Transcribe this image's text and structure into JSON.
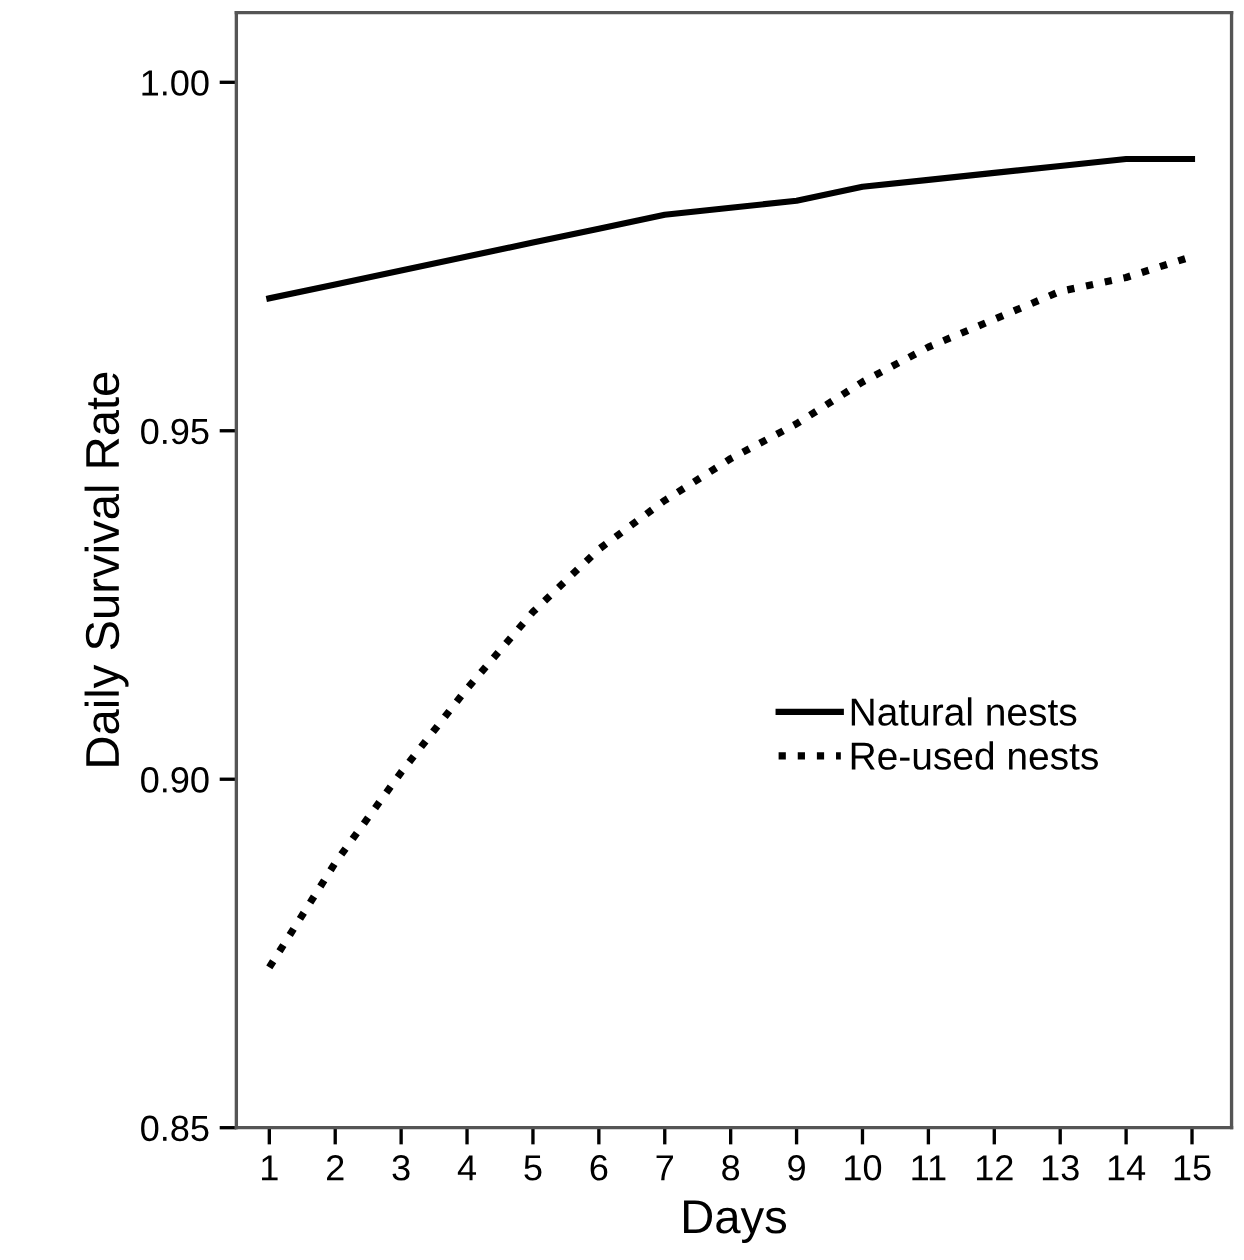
{
  "chart_data": {
    "type": "line",
    "xlabel": "Days",
    "ylabel": "Daily Survival Rate",
    "x": [
      1,
      2,
      3,
      4,
      5,
      6,
      7,
      8,
      9,
      10,
      11,
      12,
      13,
      14,
      15
    ],
    "series": [
      {
        "name": "Natural nests",
        "color": "#000000",
        "line_style": "solid",
        "values": [
          0.969,
          0.971,
          0.973,
          0.975,
          0.977,
          0.979,
          0.981,
          0.982,
          0.983,
          0.985,
          0.986,
          0.987,
          0.988,
          0.989,
          0.989
        ]
      },
      {
        "name": "Re-used nests",
        "color": "#000000",
        "line_style": "dotted",
        "values": [
          0.873,
          0.888,
          0.901,
          0.913,
          0.924,
          0.933,
          0.94,
          0.946,
          0.951,
          0.957,
          0.962,
          0.966,
          0.97,
          0.972,
          0.975
        ]
      }
    ],
    "xlim": [
      0.5,
      15.6
    ],
    "ylim": [
      0.85,
      1.01
    ],
    "xticks": [
      1,
      2,
      3,
      4,
      5,
      6,
      7,
      8,
      9,
      10,
      11,
      12,
      13,
      14,
      15
    ],
    "yticks": [
      {
        "value": 0.85,
        "label": "0.85"
      },
      {
        "value": 0.9,
        "label": "0.90"
      },
      {
        "value": 0.95,
        "label": "0.95"
      },
      {
        "value": 1.0,
        "label": "1.00"
      }
    ],
    "grid": false,
    "legend": "center right",
    "marker": "none"
  }
}
